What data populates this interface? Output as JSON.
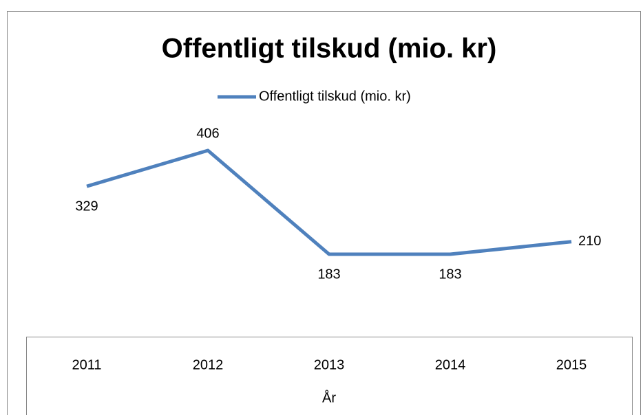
{
  "chart_data": {
    "type": "line",
    "title": "Offentligt tilskud (mio. kr)",
    "x_label": "År",
    "categories": [
      "2011",
      "2012",
      "2013",
      "2014",
      "2015"
    ],
    "series": [
      {
        "name": "Offentligt tilskud (mio. kr)",
        "color": "#4f81bd",
        "values": [
          329,
          406,
          183,
          183,
          210
        ]
      }
    ],
    "legend": "top",
    "data_labels": true
  }
}
